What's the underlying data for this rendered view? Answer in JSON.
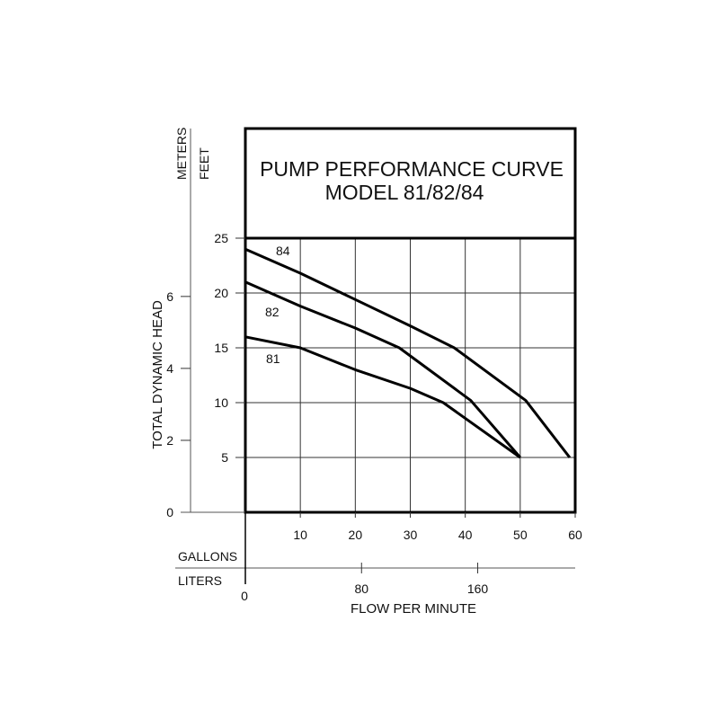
{
  "chart_data": {
    "type": "line",
    "title": "PUMP PERFORMANCE CURVE",
    "subtitle": "MODEL 81/82/84",
    "xlabel": "FLOW PER MINUTE",
    "ylabel": "TOTAL DYNAMIC HEAD",
    "x_unit_primary": "GALLONS",
    "x_unit_secondary": "LITERS",
    "y_unit_primary": "FEET",
    "y_unit_secondary": "METERS",
    "xlim": [
      0,
      60
    ],
    "ylim": [
      0,
      25
    ],
    "grid": true,
    "x_ticks": [
      10,
      20,
      30,
      40,
      50,
      60
    ],
    "x_ticks_labels": [
      "10",
      "20",
      "30",
      "40",
      "50",
      "60"
    ],
    "liters_ticks": [
      80,
      160
    ],
    "liters_ticks_labels": [
      "80",
      "160"
    ],
    "origin_label": "0",
    "y_ticks": [
      5,
      10,
      15,
      20,
      25
    ],
    "y_ticks_labels": [
      "5",
      "10",
      "15",
      "20",
      "25"
    ],
    "meters_ticks": [
      0,
      2,
      4,
      6
    ],
    "meters_ticks_labels": [
      "0",
      "2",
      "4",
      "6"
    ],
    "series": [
      {
        "name": "84",
        "x": [
          0,
          10,
          20,
          30,
          38,
          51,
          59
        ],
        "y": [
          24,
          21.8,
          19.4,
          17,
          15,
          10.2,
          5
        ]
      },
      {
        "name": "82",
        "x": [
          0,
          10,
          20,
          28,
          41,
          50
        ],
        "y": [
          21,
          18.8,
          16.8,
          15,
          10.2,
          5
        ]
      },
      {
        "name": "81",
        "x": [
          0,
          10,
          20,
          30,
          36,
          50
        ],
        "y": [
          16,
          15,
          13,
          11.3,
          10,
          5
        ]
      }
    ],
    "annotations": [
      "84",
      "82",
      "81"
    ]
  }
}
